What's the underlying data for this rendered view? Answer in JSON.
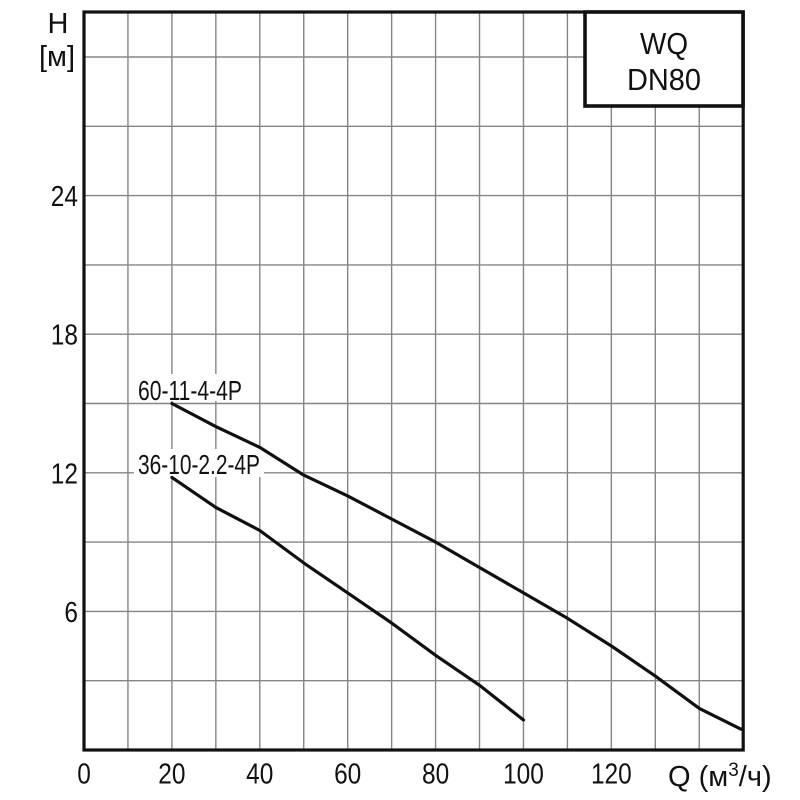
{
  "badge": {
    "line1": "WQ",
    "line2": "DN80"
  },
  "y_axis": {
    "title_line1": "H",
    "title_line2": "[м]",
    "ticks": [
      6,
      12,
      18,
      24
    ]
  },
  "x_axis": {
    "title": "Q (м³/ч)",
    "title_parts": {
      "pre": "Q (м",
      "sup": "3",
      "post": "/ч)"
    },
    "ticks": [
      0,
      20,
      40,
      60,
      80,
      100,
      120
    ]
  },
  "colors": {
    "background": "#ffffff",
    "grid": "#858585",
    "frame": "#111111",
    "curve": "#111111",
    "text": "#111111"
  },
  "chart_data": {
    "type": "line",
    "title": "WQ DN80",
    "xlabel": "Q (м³/ч)",
    "ylabel": "H [м]",
    "xlim": [
      0,
      150
    ],
    "ylim": [
      0,
      31.9
    ],
    "x_grid_step": 10,
    "y_grid_step": 3,
    "y_grid_max": 30,
    "grid": "on",
    "legend_position": "labels-at-curve-start",
    "series": [
      {
        "name": "60-11-4-4P",
        "points": [
          [
            20,
            15.0
          ],
          [
            30,
            14.0
          ],
          [
            40,
            13.1
          ],
          [
            50,
            11.9
          ],
          [
            60,
            11.0
          ],
          [
            70,
            10.0
          ],
          [
            80,
            9.0
          ],
          [
            90,
            7.9
          ],
          [
            100,
            6.8
          ],
          [
            110,
            5.7
          ],
          [
            120,
            4.5
          ],
          [
            130,
            3.2
          ],
          [
            140,
            1.8
          ],
          [
            149.5,
            0.9
          ]
        ]
      },
      {
        "name": "36-10-2.2-4P",
        "points": [
          [
            20,
            11.8
          ],
          [
            30,
            10.5
          ],
          [
            40,
            9.5
          ],
          [
            50,
            8.1
          ],
          [
            60,
            6.8
          ],
          [
            70,
            5.5
          ],
          [
            80,
            4.1
          ],
          [
            90,
            2.8
          ],
          [
            100,
            1.3
          ]
        ]
      }
    ]
  }
}
